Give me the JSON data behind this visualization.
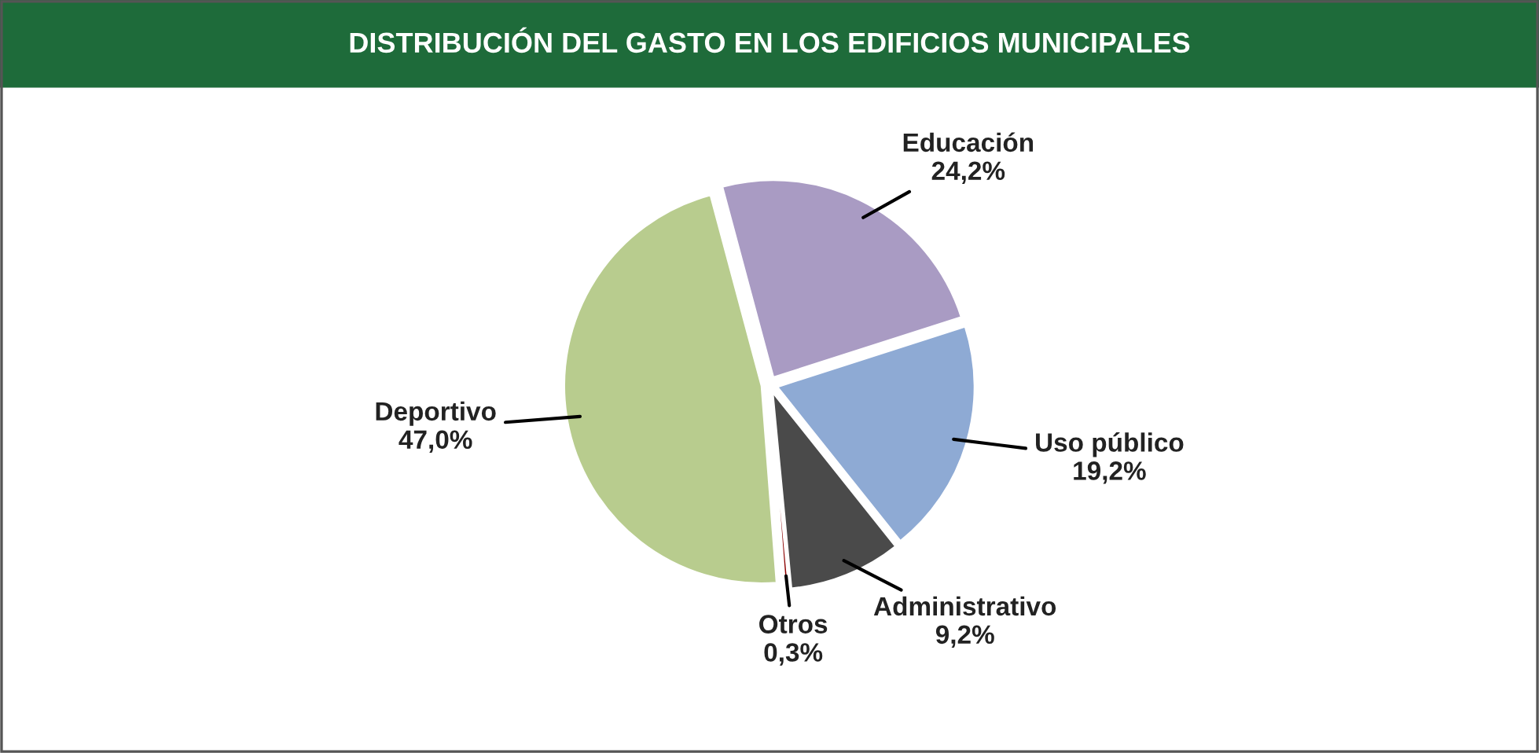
{
  "chart_data": {
    "type": "pie",
    "title": "DISTRIBUCIÓN DEL GASTO EN LOS EDIFICIOS MUNICIPALES",
    "categories": [
      "Educación",
      "Uso público",
      "Administrativo",
      "Otros",
      "Deportivo"
    ],
    "values": [
      24.2,
      19.2,
      9.2,
      0.3,
      47.0
    ],
    "value_labels": [
      "24,2%",
      "19,2%",
      "9,2%",
      "0,3%",
      "47,0%"
    ],
    "colors": [
      "#a99bc3",
      "#8eaad4",
      "#4a4a4a",
      "#8b0000",
      "#b8cc8e"
    ]
  }
}
